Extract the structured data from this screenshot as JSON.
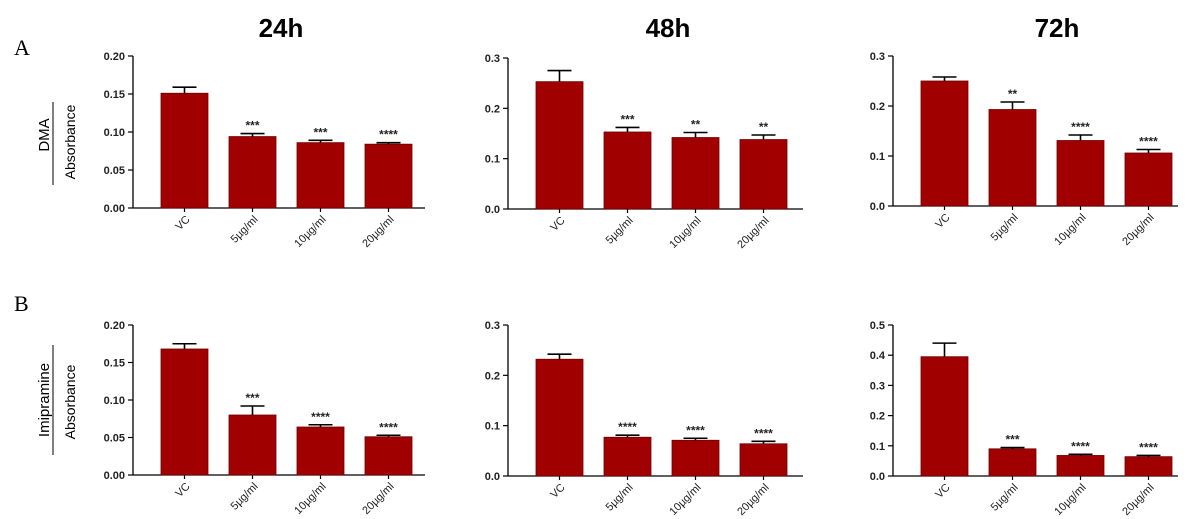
{
  "column_titles": [
    "24h",
    "48h",
    "72h"
  ],
  "row_labels": [
    "A",
    "B"
  ],
  "drug_labels": [
    "DMA",
    "Imipramine"
  ],
  "y_axis_label": "Absorbance",
  "colors": {
    "bar": "#a00000",
    "bar_edge": "#6e0000",
    "axis": "#000000"
  },
  "chart_data": [
    {
      "type": "bar",
      "row": "A",
      "drug": "DMA",
      "time": "24h",
      "categories": [
        "VC",
        "5µg/ml",
        "10µg/ml",
        "20µg/ml"
      ],
      "values": [
        0.151,
        0.094,
        0.086,
        0.084
      ],
      "errors": [
        0.008,
        0.004,
        0.003,
        0.002
      ],
      "significance": [
        "",
        "***",
        "***",
        "****"
      ],
      "ylim": [
        0,
        0.2
      ],
      "yticks": [
        "0.00",
        "0.05",
        "0.10",
        "0.15",
        "0.20"
      ],
      "ylabel": "Absorbance"
    },
    {
      "type": "bar",
      "row": "A",
      "drug": "DMA",
      "time": "48h",
      "categories": [
        "VC",
        "5µg/ml",
        "10µg/ml",
        "20µg/ml"
      ],
      "values": [
        0.253,
        0.153,
        0.142,
        0.138
      ],
      "errors": [
        0.022,
        0.009,
        0.01,
        0.009
      ],
      "significance": [
        "",
        "***",
        "**",
        "**"
      ],
      "ylim": [
        0,
        0.3
      ],
      "yticks": [
        "0.0",
        "0.1",
        "0.2",
        "0.3"
      ]
    },
    {
      "type": "bar",
      "row": "A",
      "drug": "DMA",
      "time": "72h",
      "categories": [
        "VC",
        "5µg/ml",
        "10µg/ml",
        "20µg/ml"
      ],
      "values": [
        0.25,
        0.193,
        0.131,
        0.106
      ],
      "errors": [
        0.008,
        0.015,
        0.011,
        0.007
      ],
      "significance": [
        "",
        "**",
        "****",
        "****"
      ],
      "ylim": [
        0,
        0.3
      ],
      "yticks": [
        "0.0",
        "0.1",
        "0.2",
        "0.3"
      ]
    },
    {
      "type": "bar",
      "row": "B",
      "drug": "Imipramine",
      "time": "24h",
      "categories": [
        "VC",
        "5µg/ml",
        "10µg/ml",
        "20µg/ml"
      ],
      "values": [
        0.168,
        0.08,
        0.064,
        0.051
      ],
      "errors": [
        0.007,
        0.012,
        0.003,
        0.002
      ],
      "significance": [
        "",
        "***",
        "****",
        "****"
      ],
      "ylim": [
        0,
        0.2
      ],
      "yticks": [
        "0.00",
        "0.05",
        "0.10",
        "0.15",
        "0.20"
      ],
      "ylabel": "Absorbance"
    },
    {
      "type": "bar",
      "row": "B",
      "drug": "Imipramine",
      "time": "48h",
      "categories": [
        "VC",
        "5µg/ml",
        "10µg/ml",
        "20µg/ml"
      ],
      "values": [
        0.232,
        0.077,
        0.071,
        0.064
      ],
      "errors": [
        0.01,
        0.004,
        0.004,
        0.005
      ],
      "significance": [
        "",
        "****",
        "****",
        "****"
      ],
      "ylim": [
        0,
        0.3
      ],
      "yticks": [
        "0.0",
        "0.1",
        "0.2",
        "0.3"
      ]
    },
    {
      "type": "bar",
      "row": "B",
      "drug": "Imipramine",
      "time": "72h",
      "categories": [
        "VC",
        "5µg/ml",
        "10µg/ml",
        "20µg/ml"
      ],
      "values": [
        0.395,
        0.09,
        0.068,
        0.064
      ],
      "errors": [
        0.045,
        0.004,
        0.004,
        0.004
      ],
      "significance": [
        "",
        "***",
        "****",
        "****"
      ],
      "ylim": [
        0,
        0.5
      ],
      "yticks": [
        "0.0",
        "0.1",
        "0.2",
        "0.3",
        "0.4",
        "0.5"
      ]
    }
  ]
}
